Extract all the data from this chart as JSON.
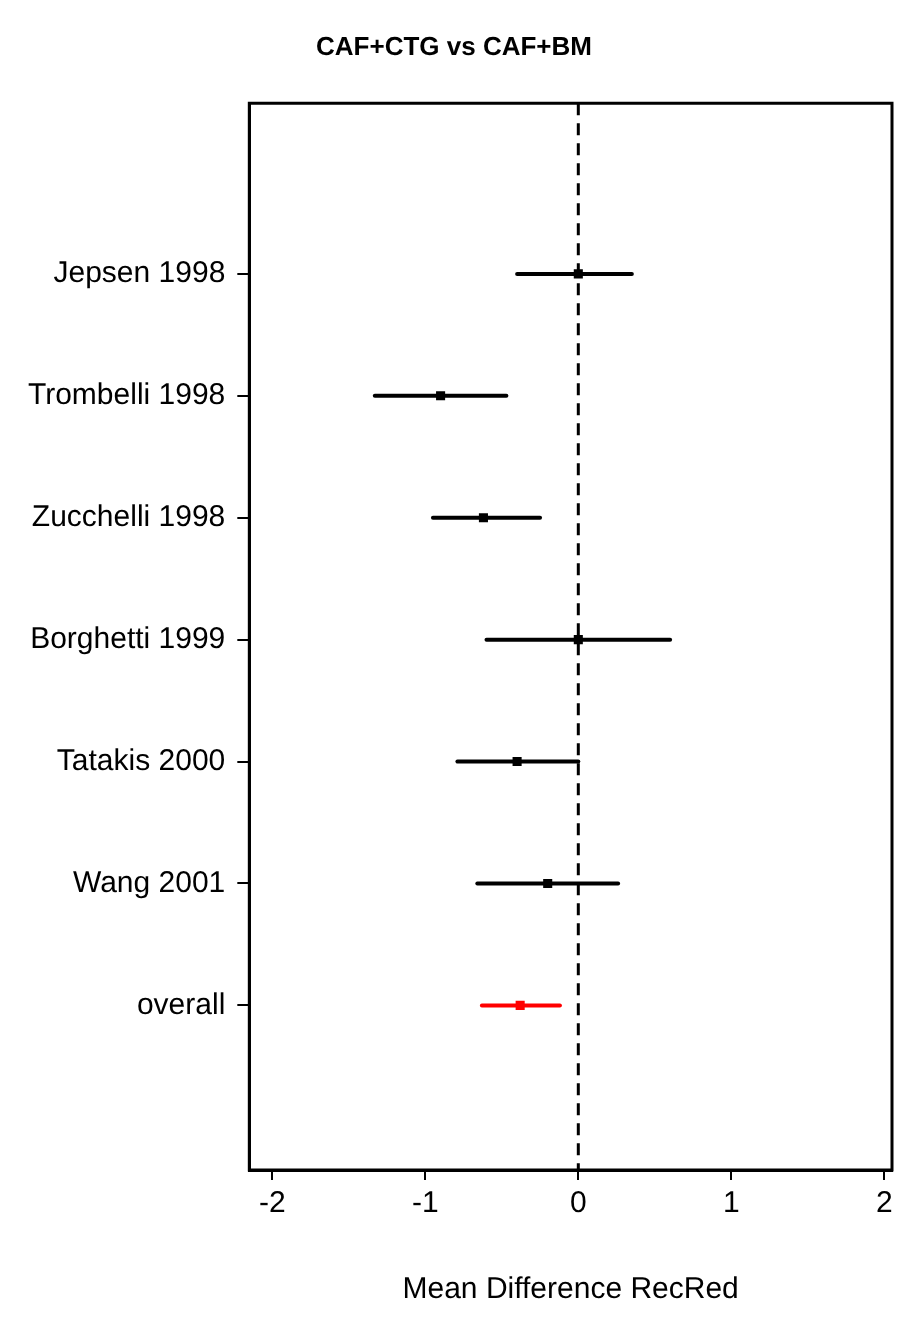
{
  "chart_data": {
    "type": "scatter",
    "orientation": "horizontal",
    "title": "CAF+CTG vs CAF+BM",
    "xlabel": "Mean Difference RecRed",
    "categories": [
      "Jepsen 1998",
      "Trombelli 1998",
      "Zucchelli 1998",
      "Borghetti 1999",
      "Tatakis 2000",
      "Wang 2001",
      "overall"
    ],
    "values": [
      0,
      -0.9,
      -0.62,
      0,
      -0.4,
      -0.2,
      -0.38
    ],
    "errors": [
      [
        -0.4,
        0.35
      ],
      [
        -1.33,
        -0.47
      ],
      [
        -0.95,
        -0.25
      ],
      [
        -0.6,
        0.6
      ],
      [
        -0.79,
        0
      ],
      [
        -0.66,
        0.26
      ],
      [
        -0.63,
        -0.12
      ]
    ],
    "colors": [
      "#000000",
      "#000000",
      "#000000",
      "#000000",
      "#000000",
      "#000000",
      "#ff0000"
    ],
    "xlim": [
      -2.15,
      2.05
    ],
    "xticks": [
      -2,
      -1,
      0,
      1,
      2
    ],
    "ref_lines": [
      {
        "axis": "x",
        "value": 0,
        "line_style": "dashed",
        "color": "#000000"
      }
    ],
    "grid": false,
    "legend": false
  }
}
